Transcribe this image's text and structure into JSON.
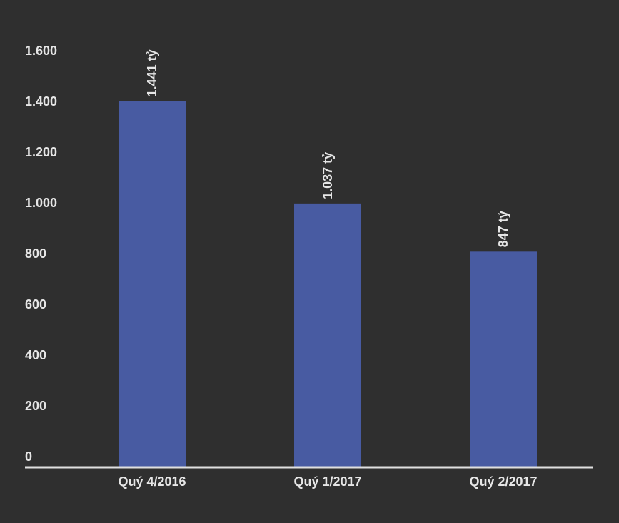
{
  "chart_data": {
    "type": "bar",
    "categories": [
      "Quý 4/2016",
      "Quý 1/2017",
      "Quý 2/2017"
    ],
    "values": [
      1441,
      1037,
      847
    ],
    "data_labels": [
      "1.441 tỷ",
      "1.037 tỷ",
      "847 tỷ"
    ],
    "yticks": [
      0,
      200,
      400,
      600,
      800,
      1000,
      1200,
      1400,
      1600
    ],
    "ytick_labels": [
      "0",
      "200",
      "400",
      "600",
      "800",
      "1.000",
      "1.200",
      "1.400",
      "1.600"
    ],
    "ylim": [
      0,
      1600
    ],
    "grid": false,
    "title": "",
    "xlabel": "",
    "ylabel": "",
    "colors": {
      "bar": "#485ba2",
      "background": "#2f2f2f",
      "axis": "#e0e0e0",
      "text": "#e6e6e6"
    }
  }
}
